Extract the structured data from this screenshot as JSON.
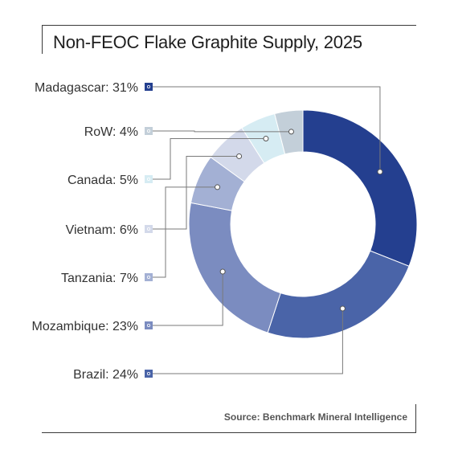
{
  "title": "Non-FEOC Flake Graphite Supply, 2025",
  "source": "Source: Benchmark Mineral Intelligence",
  "chart_data": {
    "type": "donut",
    "title": "Non-FEOC Flake Graphite Supply, 2025",
    "unit": "%",
    "slices": [
      {
        "label": "Madagascar",
        "value": 31,
        "display": "Madagascar: 31%",
        "color": "#243f8f"
      },
      {
        "label": "Brazil",
        "value": 24,
        "display": "Brazil: 24%",
        "color": "#4a64a8"
      },
      {
        "label": "Mozambique",
        "value": 23,
        "display": "Mozambique: 23%",
        "color": "#7b8cc0"
      },
      {
        "label": "Tanzania",
        "value": 7,
        "display": "Tanzania: 7%",
        "color": "#a3b0d4"
      },
      {
        "label": "Vietnam",
        "value": 6,
        "display": "Vietnam: 6%",
        "color": "#d3d9ea"
      },
      {
        "label": "Canada",
        "value": 5,
        "display": "Canada: 5%",
        "color": "#d6ecf3"
      },
      {
        "label": "RoW",
        "value": 4,
        "display": "RoW: 4%",
        "color": "#c3cfd9"
      }
    ],
    "label_order": [
      "Madagascar",
      "RoW",
      "Canada",
      "Vietnam",
      "Tanzania",
      "Mozambique",
      "Brazil"
    ]
  }
}
